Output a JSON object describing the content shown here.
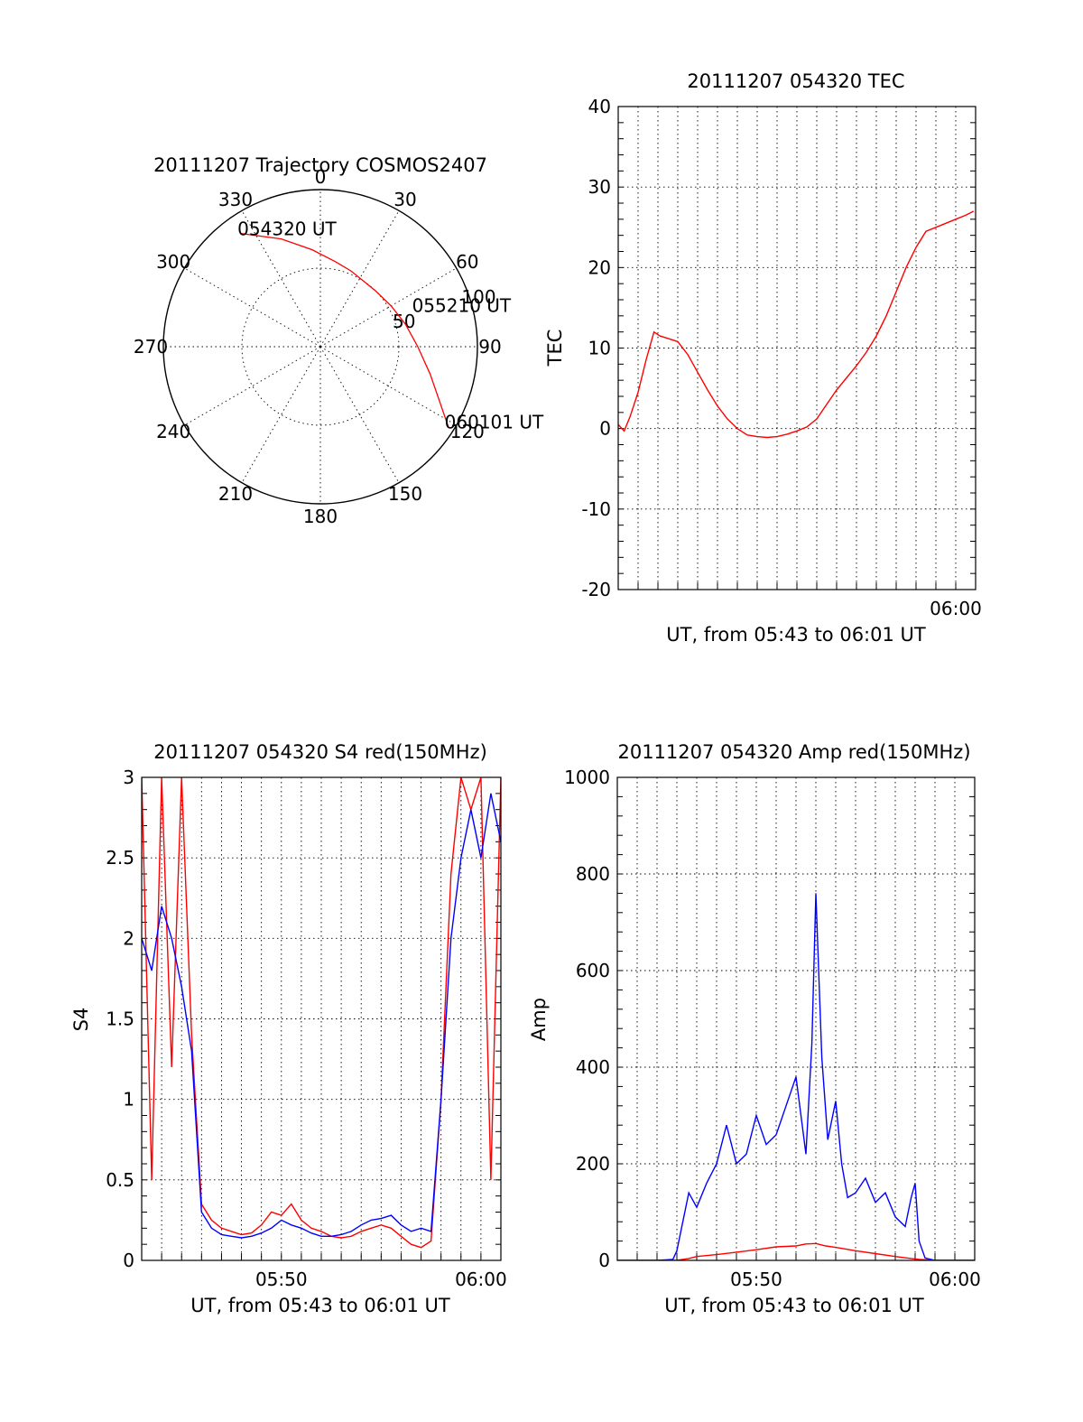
{
  "chart_data": [
    {
      "type": "polar",
      "title": "20111207 Trajectory COSMOS2407",
      "angle_labels": [
        "0",
        "30",
        "60",
        "90",
        "120",
        "150",
        "180",
        "210",
        "240",
        "270",
        "300",
        "330"
      ],
      "radius_labels": [
        "50",
        "100"
      ],
      "radius_max": 100,
      "grid": true,
      "series_color": "#ff0000",
      "trajectory": {
        "azimuth_deg": [
          325,
          340,
          355,
          10,
          22,
          33,
          45,
          60,
          75,
          90,
          104,
          115,
          122
        ],
        "radius": [
          88,
          73,
          62,
          55,
          52,
          50,
          50,
          52,
          56,
          62,
          72,
          84,
          96
        ]
      },
      "annotations": [
        {
          "text": "054320 UT",
          "azimuth_deg": 325,
          "radius": 88
        },
        {
          "text": "055210 UT",
          "azimuth_deg": 69,
          "radius": 65
        },
        {
          "text": "060101 UT",
          "azimuth_deg": 122,
          "radius": 96
        }
      ]
    },
    {
      "type": "line",
      "title": "20111207 054320 TEC",
      "xlabel": "UT, from 05:43 to 06:01 UT",
      "ylabel": "TEC",
      "ylim": [
        -20,
        40
      ],
      "y_ticks": [
        -20,
        -10,
        0,
        10,
        20,
        30,
        40
      ],
      "xlim_minutes": [
        0,
        18
      ],
      "x_tick_labels": [
        {
          "t": 17,
          "label": "06:00"
        }
      ],
      "series": [
        {
          "color": "#ff0000",
          "x": [
            0,
            0.3,
            0.6,
            1.0,
            1.4,
            1.8,
            2.1,
            2.5,
            3.0,
            3.5,
            4.0,
            4.5,
            5.0,
            5.5,
            6.0,
            6.5,
            7.0,
            7.5,
            8.0,
            8.5,
            9.0,
            9.5,
            10.0,
            10.5,
            11.0,
            11.5,
            12.0,
            12.5,
            13.0,
            13.5,
            14.0,
            14.5,
            15.0,
            15.5,
            16.0,
            16.5,
            17.0,
            17.5,
            17.9
          ],
          "y": [
            0.5,
            -0.3,
            1.5,
            4.5,
            8.5,
            12.0,
            11.5,
            11.2,
            10.8,
            9.2,
            7.0,
            4.8,
            2.8,
            1.2,
            0,
            -0.8,
            -1.0,
            -1.1,
            -1.0,
            -0.7,
            -0.3,
            0.2,
            1.2,
            3.0,
            4.8,
            6.3,
            7.8,
            9.5,
            11.5,
            14.0,
            17.0,
            20.0,
            22.5,
            24.5,
            25.0,
            25.5,
            26.0,
            26.5,
            27.0
          ]
        }
      ]
    },
    {
      "type": "line",
      "title": "20111207 054320 S4 red(150MHz)",
      "xlabel": "UT, from 05:43 to 06:01 UT",
      "ylabel": "S4",
      "ylim": [
        0,
        3
      ],
      "y_ticks": [
        0,
        0.5,
        1,
        1.5,
        2,
        2.5,
        3
      ],
      "xlim_minutes": [
        0,
        18
      ],
      "x_tick_labels": [
        {
          "t": 7,
          "label": "05:50"
        },
        {
          "t": 17,
          "label": "06:00"
        }
      ],
      "series": [
        {
          "color": "#ff0000",
          "x": [
            0,
            0.5,
            1.0,
            1.5,
            2.0,
            2.5,
            3.0,
            3.5,
            4.0,
            4.5,
            5.0,
            5.5,
            6.0,
            6.5,
            7.0,
            7.5,
            8.0,
            8.5,
            9.0,
            9.5,
            10.0,
            10.5,
            11.0,
            11.5,
            12.0,
            12.5,
            13.0,
            13.5,
            14.0,
            14.5,
            15.0,
            15.5,
            16.0,
            16.5,
            17.0,
            17.5,
            18.0
          ],
          "y": [
            3.0,
            0.5,
            3.0,
            1.2,
            3.0,
            1.4,
            0.35,
            0.25,
            0.2,
            0.18,
            0.16,
            0.17,
            0.22,
            0.3,
            0.28,
            0.35,
            0.25,
            0.2,
            0.18,
            0.15,
            0.14,
            0.15,
            0.18,
            0.2,
            0.22,
            0.2,
            0.15,
            0.1,
            0.08,
            0.12,
            1.0,
            2.4,
            3.0,
            2.8,
            3.0,
            0.5,
            3.0
          ]
        },
        {
          "color": "#0000ff",
          "x": [
            0,
            0.5,
            1.0,
            1.5,
            2.0,
            2.5,
            3.0,
            3.5,
            4.0,
            4.5,
            5.0,
            5.5,
            6.0,
            6.5,
            7.0,
            7.5,
            8.0,
            8.5,
            9.0,
            9.5,
            10.0,
            10.5,
            11.0,
            11.5,
            12.0,
            12.5,
            13.0,
            13.5,
            14.0,
            14.5,
            15.0,
            15.5,
            16.0,
            16.5,
            17.0,
            17.5,
            18.0
          ],
          "y": [
            2.0,
            1.8,
            2.2,
            2.0,
            1.7,
            1.3,
            0.3,
            0.2,
            0.16,
            0.15,
            0.14,
            0.15,
            0.17,
            0.2,
            0.25,
            0.22,
            0.2,
            0.17,
            0.15,
            0.15,
            0.16,
            0.18,
            0.22,
            0.25,
            0.26,
            0.28,
            0.22,
            0.18,
            0.2,
            0.18,
            1.0,
            2.0,
            2.5,
            2.8,
            2.5,
            2.9,
            2.6
          ]
        }
      ]
    },
    {
      "type": "line",
      "title": "20111207 054320 Amp red(150MHz)",
      "xlabel": "UT, from 05:43 to 06:01 UT",
      "ylabel": "Amp",
      "ylim": [
        0,
        1000
      ],
      "y_ticks": [
        0,
        200,
        400,
        600,
        800,
        1000
      ],
      "xlim_minutes": [
        0,
        18
      ],
      "x_tick_labels": [
        {
          "t": 7,
          "label": "05:50"
        },
        {
          "t": 17,
          "label": "06:00"
        }
      ],
      "series": [
        {
          "color": "#0000ff",
          "x": [
            0,
            1.0,
            2.0,
            2.8,
            3.0,
            3.3,
            3.6,
            4.0,
            4.5,
            5.0,
            5.5,
            6.0,
            6.5,
            7.0,
            7.5,
            8.0,
            8.5,
            9.0,
            9.5,
            9.8,
            10.0,
            10.3,
            10.6,
            11.0,
            11.3,
            11.6,
            12.0,
            12.5,
            13.0,
            13.5,
            14.0,
            14.5,
            14.8,
            15.0,
            15.2,
            15.5,
            16.0,
            17.0,
            18.0
          ],
          "y": [
            0,
            0,
            0,
            2,
            20,
            80,
            140,
            110,
            160,
            200,
            280,
            200,
            220,
            300,
            240,
            260,
            320,
            380,
            220,
            450,
            760,
            420,
            250,
            330,
            200,
            130,
            140,
            170,
            120,
            140,
            90,
            70,
            130,
            160,
            40,
            5,
            0,
            0,
            0
          ]
        },
        {
          "color": "#ff0000",
          "x": [
            0,
            1.0,
            2.0,
            3.0,
            3.6,
            4.0,
            5.0,
            6.0,
            7.0,
            8.0,
            9.0,
            9.5,
            10.0,
            10.5,
            11.0,
            12.0,
            13.0,
            14.0,
            14.8,
            15.2,
            16.0,
            17.0,
            18.0
          ],
          "y": [
            0,
            0,
            0,
            0,
            4,
            8,
            12,
            17,
            22,
            28,
            30,
            34,
            35,
            30,
            27,
            20,
            14,
            8,
            4,
            2,
            0,
            0,
            0
          ]
        }
      ]
    }
  ]
}
